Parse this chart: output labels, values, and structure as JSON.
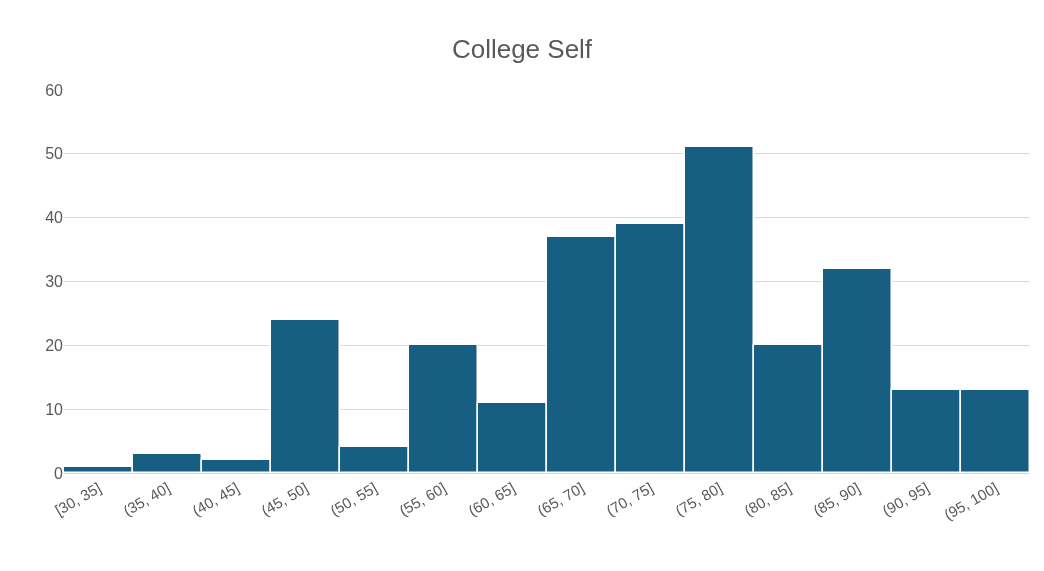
{
  "chart_data": {
    "type": "bar",
    "title": "College Self",
    "categories": [
      "[30, 35]",
      "(35, 40]",
      "(40, 45]",
      "(45, 50]",
      "(50, 55]",
      "(55, 60]",
      "(60, 65]",
      "(65, 70]",
      "(70, 75]",
      "(75, 80]",
      "(80, 85]",
      "(85, 90]",
      "(90, 95]",
      "(95, 100]"
    ],
    "values": [
      1,
      3,
      2,
      24,
      4,
      20,
      11,
      37,
      39,
      51,
      20,
      32,
      13,
      13
    ],
    "color": "#175f82",
    "ylim": [
      0,
      60
    ],
    "yticks": [
      0,
      10,
      20,
      30,
      40,
      50,
      60
    ],
    "grid": "y"
  }
}
